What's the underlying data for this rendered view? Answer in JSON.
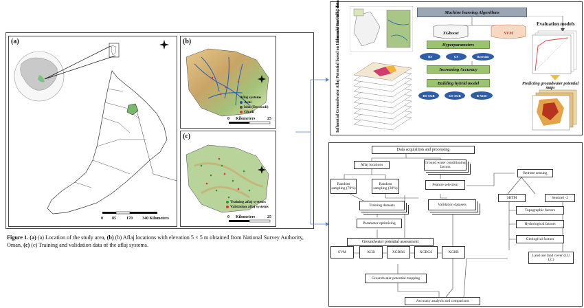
{
  "left": {
    "label_a": "(a)",
    "label_b": "(b)",
    "label_c": "(c)",
    "scale_a": [
      "0",
      "85",
      "170",
      "340 Kilometers"
    ],
    "legend_b_title": "Aflaj systems",
    "legend_b": [
      {
        "text": "Ayni",
        "color": "#1f4fa0"
      },
      {
        "text": "Iddi (Dawoodi)",
        "color": "#4a4a4a"
      },
      {
        "text": "Ghaili",
        "color": "#d33"
      }
    ],
    "scale_b": [
      "0",
      "Kilometers",
      "25"
    ],
    "legend_c": [
      {
        "text": "Training aflaj systems",
        "color": "#2a9a2a"
      },
      {
        "text": "Validation aflaj systems",
        "color": "#d33"
      }
    ],
    "scale_c": [
      "0",
      "Kilometers",
      "25"
    ],
    "caption_bold": "Figure 1.",
    "caption_parts": [
      "(a) Location of the study area, ",
      "(b) Aflaj locations with elevation 5 × 5 m obtained from National Survey Authority, Oman, ",
      "(c) Training and validation data of the aflaj systems."
    ],
    "caption_labels": [
      "(a)",
      "(b)",
      "(c)"
    ]
  },
  "top_right": {
    "vert_left_1": "Groundwater Aflaj data",
    "vert_left_2": "Influential Groundwater Aflaj Potential based on Lidar and Sentinel 2 data",
    "ml_title": "Machine learning Algorithms",
    "xgboost": "XGboost",
    "svm": "SVM",
    "hyperparameters": "Hyperparameters",
    "ovals_1": [
      "RS",
      "GS",
      "Bayesian"
    ],
    "increasing": "Increasing Accuracy",
    "hybrid": "Building hybrid model",
    "ovals_2": [
      "RS-XGB",
      "GS-XGB",
      "B-XGB"
    ],
    "evaluation": "Evaluation models",
    "predicting": "Predicting groundwater potential maps"
  },
  "flow": {
    "data_acq": "Data acquisition and processing",
    "aflaj_loc": "Aflaj locations",
    "gw_factors": "Ground water conditioning factors",
    "rand70": "Random sampling (70%)",
    "rand30": "Random sampling (30%)",
    "feature_sel": "Feature selection",
    "remote": "Remote sensing",
    "training": "Training datasets",
    "validation": "Validation datasets",
    "srtm": "SRTM",
    "sentinel": "Sentinel -2",
    "topo": "Topographic factors",
    "hydro": "Hydrological factors",
    "geo": "Geological factors",
    "lulc": "Land use land cover (LU LC)",
    "param": "Parameter optimizing",
    "gpa": "Groundwater potential assessment",
    "models": [
      "SVM",
      "XGB",
      "XGBRS",
      "XGBGS",
      "XGBB"
    ],
    "gpm": "Groundwater potential mapping",
    "accuracy": "Accuracy analysis and comparison"
  }
}
